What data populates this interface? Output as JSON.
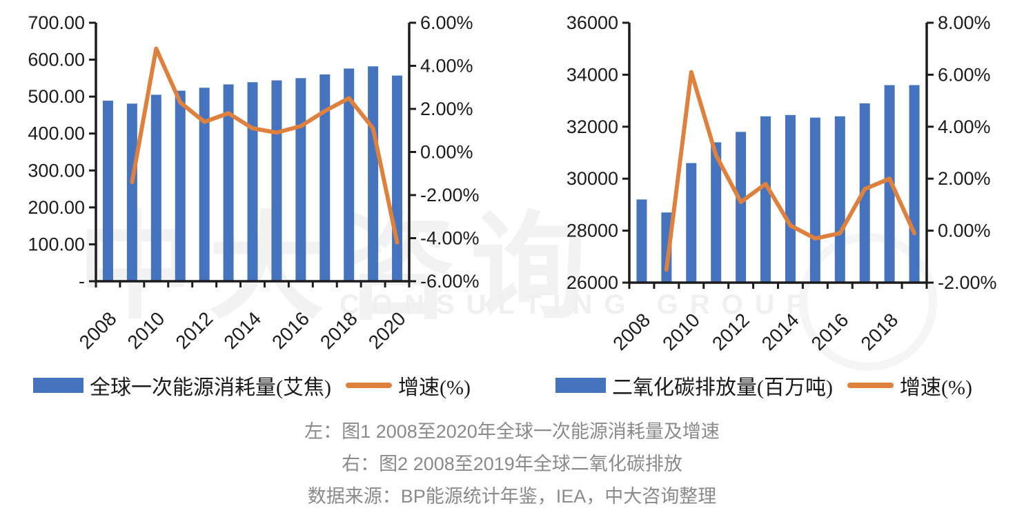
{
  "colors": {
    "bar": "#4573BD",
    "line": "#DF813E",
    "axis": "#1C1C1C",
    "caption": "#8A8A8A",
    "watermark": "#F2F2F2"
  },
  "watermark": {
    "cn": "中大咨询",
    "en": "CONSULTING GROUP"
  },
  "chart_data": [
    {
      "type": "bar+line",
      "title": "图1 2008至2020年全球一次能源消耗量及增速",
      "categories": [
        "2008",
        "2009",
        "2010",
        "2011",
        "2012",
        "2013",
        "2014",
        "2015",
        "2016",
        "2017",
        "2018",
        "2019",
        "2020"
      ],
      "series": [
        {
          "name": "全球一次能源消耗量(艾焦)",
          "type": "bar",
          "axis": "left",
          "values": [
            489,
            481,
            505,
            516,
            524,
            533,
            539,
            544,
            550,
            560,
            576,
            582,
            557
          ]
        },
        {
          "name": "增速(%)",
          "type": "line",
          "axis": "right",
          "values": [
            null,
            -1.4,
            4.8,
            2.3,
            1.4,
            1.8,
            1.1,
            0.9,
            1.2,
            1.9,
            2.5,
            1.1,
            -4.2
          ]
        }
      ],
      "left_axis": {
        "min": 0,
        "max": 700,
        "tick_values": [
          700,
          600,
          500,
          400,
          300,
          200,
          100,
          0
        ],
        "tick_labels": [
          "700.00",
          "600.00",
          "500.00",
          "400.00",
          "300.00",
          "200.00",
          "100.00",
          "-"
        ]
      },
      "right_axis": {
        "min": -6,
        "max": 6,
        "tick_values": [
          6,
          4,
          2,
          0,
          -2,
          -4,
          -6
        ],
        "tick_labels": [
          "6.00%",
          "4.00%",
          "2.00%",
          "0.00%",
          "-2.00%",
          "-4.00%",
          "-6.00%"
        ]
      },
      "x_ticks": {
        "labels": [
          "2008",
          "2010",
          "2012",
          "2014",
          "2016",
          "2018",
          "2020"
        ],
        "indices": [
          0,
          2,
          4,
          6,
          8,
          10,
          12
        ]
      },
      "legend": [
        {
          "label": "全球一次能源消耗量(艾焦)",
          "marker": "bar"
        },
        {
          "label": "增速(%)",
          "marker": "line"
        }
      ],
      "grid": false,
      "legend_position": "bottom"
    },
    {
      "type": "bar+line",
      "title": "图2 2008至2019年全球二氧化碳排放",
      "categories": [
        "2008",
        "2009",
        "2010",
        "2011",
        "2012",
        "2013",
        "2014",
        "2015",
        "2016",
        "2017",
        "2018",
        "2019"
      ],
      "series": [
        {
          "name": "二氧化碳排放量(百万吨)",
          "type": "bar",
          "axis": "left",
          "values": [
            29200,
            28700,
            30600,
            31400,
            31800,
            32400,
            32450,
            32350,
            32400,
            32900,
            33600,
            33600
          ]
        },
        {
          "name": "增速(%)",
          "type": "line",
          "axis": "right",
          "values": [
            null,
            -1.5,
            6.1,
            2.9,
            1.1,
            1.8,
            0.2,
            -0.3,
            -0.1,
            1.6,
            2.0,
            -0.1
          ]
        }
      ],
      "left_axis": {
        "min": 26000,
        "max": 36000,
        "tick_values": [
          36000,
          34000,
          32000,
          30000,
          28000,
          26000
        ],
        "tick_labels": [
          "36000",
          "34000",
          "32000",
          "30000",
          "28000",
          "26000"
        ]
      },
      "right_axis": {
        "min": -2,
        "max": 8,
        "tick_values": [
          8,
          6,
          4,
          2,
          0,
          -2
        ],
        "tick_labels": [
          "8.00%",
          "6.00%",
          "4.00%",
          "2.00%",
          "0.00%",
          "-2.00%"
        ]
      },
      "x_ticks": {
        "labels": [
          "2008",
          "2010",
          "2012",
          "2014",
          "2016",
          "2018"
        ],
        "indices": [
          0,
          2,
          4,
          6,
          8,
          10
        ]
      },
      "legend": [
        {
          "label": "二氧化碳排放量(百万吨)",
          "marker": "bar"
        },
        {
          "label": "增速(%)",
          "marker": "line"
        }
      ],
      "grid": false,
      "legend_position": "bottom"
    }
  ],
  "captions": [
    "左：图1  2008至2020年全球一次能源消耗量及增速",
    "右：图2 2008至2019年全球二氧化碳排放",
    "数据来源：BP能源统计年鉴，IEA，中大咨询整理"
  ]
}
